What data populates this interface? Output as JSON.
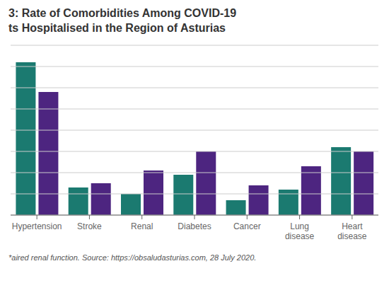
{
  "chart_data": {
    "type": "bar",
    "title": "3: Rate of Comorbidities Among COVID-19\nts Hospitalised in the Region of Asturias",
    "categories": [
      "Hypertension",
      "Stroke",
      "Renal",
      "Diabetes",
      "Cancer",
      "Lung\ndisease",
      "Heart\ndisease"
    ],
    "series": [
      {
        "color": "#1b7a70",
        "values": [
          72,
          13,
          10,
          19,
          7,
          12,
          32
        ]
      },
      {
        "color": "#4d2580",
        "values": [
          58,
          15,
          21,
          30,
          14,
          23,
          30
        ]
      }
    ],
    "ylim": [
      0,
      80
    ],
    "yticks": [
      0,
      10,
      20,
      30,
      40,
      50,
      60,
      70,
      80
    ],
    "grid": true,
    "tick_labels": "x",
    "annotations": [
      "*aired renal function. Source: https://obsaludasturias.com, 28 July 2020."
    ]
  }
}
